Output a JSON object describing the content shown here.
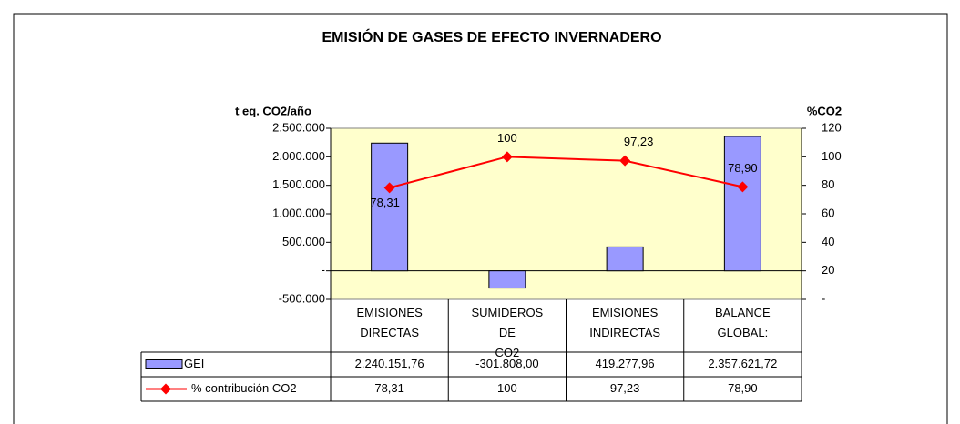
{
  "chart_data": {
    "type": "bar",
    "title": "EMISIÓN DE GASES DE EFECTO INVERNADERO",
    "y_label": "t eq. CO2/año",
    "y2_label": "%CO2",
    "categories": [
      "EMISIONES DIRECTAS",
      "SUMIDEROS DE CO2",
      "EMISIONES INDIRECTAS",
      "BALANCE GLOBAL:"
    ],
    "ylim": [
      -500000,
      2500000
    ],
    "yticks": [
      {
        "value": -500000,
        "label": "-500.000"
      },
      {
        "value": 0,
        "label": "-"
      },
      {
        "value": 500000,
        "label": "500.000"
      },
      {
        "value": 1000000,
        "label": "1.000.000"
      },
      {
        "value": 1500000,
        "label": "1.500.000"
      },
      {
        "value": 2000000,
        "label": "2.000.000"
      },
      {
        "value": 2500000,
        "label": "2.500.000"
      }
    ],
    "y2lim": [
      0,
      120
    ],
    "y2ticks": [
      {
        "value": 0,
        "label": "-"
      },
      20,
      40,
      60,
      80,
      100,
      120
    ],
    "series": [
      {
        "name": "GEI",
        "type": "bar",
        "color": "#9999ff",
        "values": [
          2240151.76,
          -301808.0,
          419277.96,
          2357621.72
        ],
        "value_labels": [
          "2.240.151,76",
          "-301.808,00",
          "419.277,96",
          "2.357.621,72"
        ]
      },
      {
        "name": "% contribución CO2",
        "type": "line",
        "axis": "y2",
        "color": "#ff0000",
        "values": [
          78.31,
          100,
          97.23,
          78.9
        ],
        "value_labels": [
          "78,31",
          "100",
          "97,23",
          "78,90"
        ]
      }
    ]
  }
}
